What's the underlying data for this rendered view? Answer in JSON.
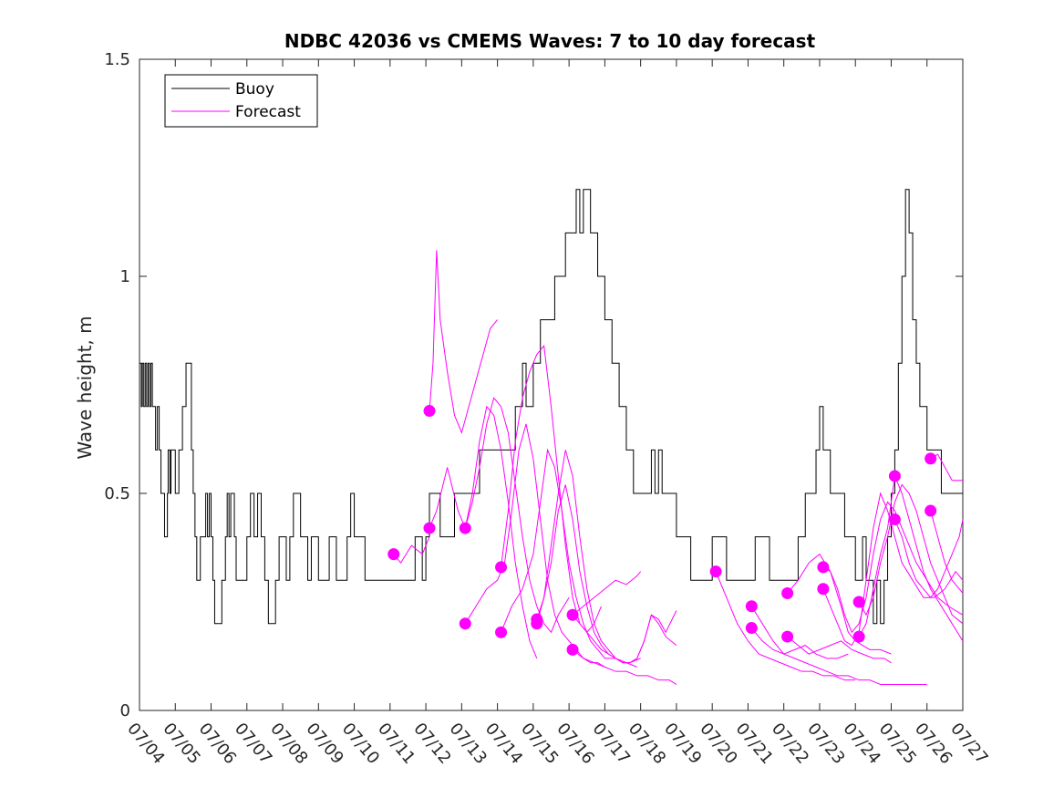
{
  "chart_data": {
    "type": "line",
    "title": "NDBC 42036 vs CMEMS Waves: 7 to 10 day forecast",
    "xlabel": "",
    "ylabel": "Wave height, m",
    "ylim": [
      0,
      1.5
    ],
    "yticks": [
      0,
      0.5,
      1,
      1.5
    ],
    "ytick_labels": [
      "0",
      "0.5",
      "1",
      "1.5"
    ],
    "xlim_days": [
      0,
      23
    ],
    "xtick_labels": [
      "07/04",
      "07/05",
      "07/06",
      "07/07",
      "07/08",
      "07/09",
      "07/10",
      "07/11",
      "07/12",
      "07/13",
      "07/14",
      "07/15",
      "07/16",
      "07/17",
      "07/18",
      "07/19",
      "07/20",
      "07/21",
      "07/22",
      "07/23",
      "07/24",
      "07/25",
      "07/26",
      "07/27"
    ],
    "legend": {
      "placement": "top-left",
      "entries": [
        "Buoy",
        "Forecast"
      ]
    },
    "colors": {
      "buoy": "#000000",
      "forecast": "#ff00ff"
    },
    "grid": false,
    "buoy": {
      "name": "Buoy",
      "x": [
        0,
        0.05,
        0.08,
        0.12,
        0.16,
        0.2,
        0.24,
        0.28,
        0.32,
        0.36,
        0.4,
        0.45,
        0.5,
        0.55,
        0.6,
        0.7,
        0.78,
        0.8,
        0.85,
        0.88,
        0.92,
        1.0,
        1.1,
        1.2,
        1.3,
        1.4,
        1.45,
        1.5,
        1.55,
        1.6,
        1.65,
        1.7,
        1.75,
        1.8,
        1.85,
        1.9,
        1.95,
        2.0,
        2.05,
        2.1,
        2.2,
        2.3,
        2.4,
        2.45,
        2.5,
        2.55,
        2.6,
        2.65,
        2.7,
        2.8,
        2.9,
        3.0,
        3.1,
        3.2,
        3.3,
        3.4,
        3.5,
        3.6,
        3.7,
        3.8,
        3.9,
        4.0,
        4.05,
        4.1,
        4.15,
        4.2,
        4.3,
        4.5,
        4.7,
        4.8,
        4.9,
        5.0,
        5.1,
        5.2,
        5.3,
        5.5,
        5.7,
        5.8,
        5.9,
        6.0,
        6.3,
        6.5,
        6.8,
        7.0,
        7.1,
        7.3,
        7.5,
        7.6,
        7.7,
        7.8,
        7.9,
        8.0,
        8.1,
        8.2,
        8.4,
        8.6,
        8.8,
        9.0,
        9.5,
        10.0,
        10.5,
        10.7,
        10.8,
        11.0,
        11.2,
        11.4,
        11.6,
        11.8,
        11.9,
        12.0,
        12.1,
        12.2,
        12.3,
        12.4,
        12.5,
        12.6,
        12.8,
        13.0,
        13.2,
        13.4,
        13.6,
        13.8,
        14.0,
        14.1,
        14.2,
        14.3,
        14.4,
        14.5,
        14.6,
        14.7,
        14.8,
        14.9,
        15.0,
        15.2,
        15.4,
        15.6,
        15.8,
        16.0,
        16.2,
        16.4,
        16.6,
        16.8,
        17.0,
        17.2,
        17.4,
        17.6,
        17.8,
        18.0,
        18.2,
        18.4,
        18.6,
        18.7,
        18.8,
        18.9,
        19.0,
        19.1,
        19.2,
        19.3,
        19.4,
        19.5,
        19.6,
        19.7,
        19.8,
        19.9,
        20.0,
        20.1,
        20.2,
        20.3,
        20.4,
        20.5,
        20.6,
        20.7,
        20.8,
        20.9,
        21.0,
        21.1,
        21.2,
        21.3,
        21.4,
        21.5,
        21.6,
        21.7,
        21.8,
        21.9,
        22.0,
        22.2,
        22.4,
        22.6,
        22.8,
        23.0
      ],
      "y": [
        0.8,
        0.7,
        0.8,
        0.7,
        0.8,
        0.7,
        0.8,
        0.7,
        0.8,
        0.7,
        0.7,
        0.6,
        0.7,
        0.6,
        0.5,
        0.4,
        0.5,
        0.6,
        0.5,
        0.6,
        0.6,
        0.5,
        0.6,
        0.7,
        0.8,
        0.8,
        0.6,
        0.5,
        0.4,
        0.3,
        0.3,
        0.4,
        0.4,
        0.4,
        0.5,
        0.4,
        0.5,
        0.4,
        0.3,
        0.2,
        0.2,
        0.3,
        0.4,
        0.5,
        0.4,
        0.5,
        0.5,
        0.4,
        0.3,
        0.3,
        0.3,
        0.4,
        0.5,
        0.4,
        0.5,
        0.4,
        0.3,
        0.2,
        0.2,
        0.3,
        0.4,
        0.4,
        0.4,
        0.3,
        0.3,
        0.4,
        0.5,
        0.4,
        0.3,
        0.4,
        0.4,
        0.3,
        0.3,
        0.3,
        0.4,
        0.3,
        0.3,
        0.4,
        0.5,
        0.4,
        0.3,
        0.3,
        0.3,
        0.3,
        0.3,
        0.3,
        0.3,
        0.3,
        0.4,
        0.4,
        0.3,
        0.4,
        0.5,
        0.5,
        0.4,
        0.4,
        0.5,
        0.5,
        0.6,
        0.6,
        0.7,
        0.8,
        0.7,
        0.8,
        0.9,
        0.9,
        1.0,
        1.0,
        1.1,
        1.1,
        1.1,
        1.2,
        1.1,
        1.2,
        1.2,
        1.1,
        1.0,
        0.9,
        0.8,
        0.7,
        0.6,
        0.5,
        0.5,
        0.5,
        0.5,
        0.6,
        0.5,
        0.6,
        0.5,
        0.5,
        0.5,
        0.5,
        0.4,
        0.4,
        0.3,
        0.3,
        0.3,
        0.4,
        0.4,
        0.3,
        0.3,
        0.3,
        0.3,
        0.4,
        0.4,
        0.3,
        0.3,
        0.3,
        0.3,
        0.4,
        0.5,
        0.5,
        0.5,
        0.6,
        0.7,
        0.6,
        0.6,
        0.5,
        0.5,
        0.5,
        0.5,
        0.4,
        0.4,
        0.4,
        0.3,
        0.3,
        0.4,
        0.3,
        0.3,
        0.2,
        0.3,
        0.2,
        0.3,
        0.4,
        0.5,
        0.6,
        0.8,
        1.0,
        1.2,
        1.1,
        0.9,
        0.8,
        0.7,
        0.7,
        0.6,
        0.6,
        0.5,
        0.5,
        0.5,
        0.5
      ],
      "note_steps": "step-like observations"
    },
    "forecast_series": [
      {
        "x": [
          7.1,
          7.3,
          7.6,
          7.9,
          8.1
        ],
        "y": [
          0.36,
          0.34,
          0.38,
          0.36,
          0.4
        ]
      },
      {
        "x": [
          8.1,
          8.2,
          8.3,
          8.4,
          8.6,
          8.8,
          9.0,
          9.2,
          9.4,
          9.6,
          9.8,
          10.0
        ],
        "y": [
          0.69,
          0.8,
          1.06,
          0.9,
          0.78,
          0.68,
          0.64,
          0.7,
          0.76,
          0.82,
          0.88,
          0.9
        ]
      },
      {
        "x": [
          8.1,
          8.3,
          8.6,
          8.9,
          9.1,
          9.3,
          9.5,
          9.7,
          9.9,
          10.1,
          10.3,
          10.5,
          10.7,
          10.9,
          11.1
        ],
        "y": [
          0.42,
          0.46,
          0.56,
          0.46,
          0.42,
          0.5,
          0.62,
          0.7,
          0.68,
          0.6,
          0.48,
          0.34,
          0.24,
          0.16,
          0.12
        ]
      },
      {
        "x": [
          9.1,
          9.3,
          9.5,
          9.7,
          9.9,
          10.1,
          10.3,
          10.5,
          10.7,
          10.9,
          11.1,
          11.3,
          11.5,
          11.7,
          12.0
        ],
        "y": [
          0.42,
          0.48,
          0.56,
          0.66,
          0.72,
          0.7,
          0.64,
          0.52,
          0.4,
          0.3,
          0.24,
          0.2,
          0.18,
          0.22,
          0.26
        ]
      },
      {
        "x": [
          9.1,
          9.4,
          9.7,
          10.0,
          10.2,
          10.4,
          10.6,
          10.8,
          11.0,
          11.2,
          11.4,
          11.6,
          11.8,
          12.0,
          12.2,
          12.4,
          12.6,
          12.8,
          13.0
        ],
        "y": [
          0.2,
          0.24,
          0.28,
          0.3,
          0.34,
          0.46,
          0.6,
          0.66,
          0.58,
          0.44,
          0.3,
          0.22,
          0.18,
          0.16,
          0.14,
          0.12,
          0.11,
          0.11,
          0.1
        ]
      },
      {
        "x": [
          10.1,
          10.3,
          10.5,
          10.7,
          10.9,
          11.1,
          11.3,
          11.5,
          11.7,
          11.9,
          12.1,
          12.3,
          12.5,
          12.7,
          12.9
        ],
        "y": [
          0.33,
          0.46,
          0.62,
          0.72,
          0.78,
          0.82,
          0.84,
          0.7,
          0.54,
          0.38,
          0.26,
          0.2,
          0.18,
          0.2,
          0.24
        ]
      },
      {
        "x": [
          10.1,
          10.4,
          10.7,
          11.0,
          11.2,
          11.4,
          11.6,
          11.8,
          12.0,
          12.2,
          12.4,
          12.6,
          12.8,
          13.0,
          13.3,
          13.6,
          13.9
        ],
        "y": [
          0.18,
          0.24,
          0.28,
          0.36,
          0.48,
          0.6,
          0.56,
          0.46,
          0.34,
          0.26,
          0.2,
          0.16,
          0.14,
          0.12,
          0.12,
          0.11,
          0.1
        ]
      },
      {
        "x": [
          11.1,
          11.3,
          11.5,
          11.7,
          11.9,
          12.1,
          12.3,
          12.5,
          12.7,
          12.9,
          13.1,
          13.3,
          13.5,
          13.7,
          14.0
        ],
        "y": [
          0.21,
          0.26,
          0.38,
          0.5,
          0.6,
          0.54,
          0.4,
          0.28,
          0.2,
          0.16,
          0.14,
          0.12,
          0.11,
          0.11,
          0.12
        ]
      },
      {
        "x": [
          11.1,
          11.3,
          11.5,
          11.7,
          11.9,
          12.1,
          12.3,
          12.5,
          12.7,
          12.9,
          13.1,
          13.3,
          13.5,
          13.7,
          13.9,
          14.1,
          14.3,
          14.5,
          14.7,
          15.0
        ],
        "y": [
          0.2,
          0.26,
          0.34,
          0.46,
          0.52,
          0.44,
          0.32,
          0.24,
          0.18,
          0.15,
          0.13,
          0.12,
          0.11,
          0.11,
          0.12,
          0.16,
          0.22,
          0.2,
          0.17,
          0.15
        ]
      },
      {
        "x": [
          12.1,
          12.3,
          12.5,
          12.7,
          12.9,
          13.1,
          13.3,
          13.5,
          13.7,
          13.9,
          14.1,
          14.3,
          14.5,
          14.7,
          15.0
        ],
        "y": [
          0.22,
          0.2,
          0.18,
          0.16,
          0.14,
          0.13,
          0.12,
          0.11,
          0.11,
          0.12,
          0.16,
          0.22,
          0.21,
          0.18,
          0.23
        ]
      },
      {
        "x": [
          12.1,
          12.4,
          12.7,
          13.0,
          13.3,
          13.6,
          13.9,
          14.2,
          14.5,
          14.8,
          15.0
        ],
        "y": [
          0.14,
          0.12,
          0.11,
          0.1,
          0.09,
          0.09,
          0.08,
          0.08,
          0.07,
          0.07,
          0.06
        ]
      },
      {
        "x": [
          12.1,
          12.4,
          12.7,
          13.0,
          13.3,
          13.6,
          13.9,
          14.0
        ],
        "y": [
          0.22,
          0.24,
          0.26,
          0.28,
          0.3,
          0.29,
          0.31,
          0.32
        ]
      },
      {
        "x": [
          16.1,
          16.4,
          16.7,
          17.0,
          17.3,
          17.6,
          17.9,
          18.2,
          18.5,
          18.8,
          19.1,
          19.4,
          19.7,
          20.0
        ],
        "y": [
          0.32,
          0.26,
          0.2,
          0.16,
          0.13,
          0.12,
          0.11,
          0.1,
          0.09,
          0.09,
          0.08,
          0.08,
          0.07,
          0.07
        ]
      },
      {
        "x": [
          17.1,
          17.4,
          17.7,
          18.0,
          18.3,
          18.6,
          18.9,
          19.2,
          19.5,
          19.8,
          20.1,
          20.4,
          20.7,
          21.0,
          21.3,
          21.6,
          22.0
        ],
        "y": [
          0.24,
          0.2,
          0.16,
          0.13,
          0.12,
          0.11,
          0.1,
          0.09,
          0.08,
          0.08,
          0.07,
          0.07,
          0.06,
          0.06,
          0.06,
          0.06,
          0.06
        ]
      },
      {
        "x": [
          17.1,
          17.4,
          17.7,
          18.0,
          18.3,
          18.6,
          18.9,
          19.2,
          19.5,
          19.8
        ],
        "y": [
          0.19,
          0.16,
          0.14,
          0.13,
          0.14,
          0.15,
          0.13,
          0.12,
          0.12,
          0.13
        ]
      },
      {
        "x": [
          18.1,
          18.4,
          18.7,
          19.0,
          19.3,
          19.6,
          19.8,
          20.0,
          20.2,
          20.4,
          20.7,
          21.0
        ],
        "y": [
          0.27,
          0.3,
          0.34,
          0.36,
          0.32,
          0.24,
          0.18,
          0.16,
          0.15,
          0.14,
          0.14,
          0.13
        ]
      },
      {
        "x": [
          18.1,
          18.4,
          18.7,
          19.0,
          19.3,
          19.6,
          19.9,
          20.2,
          20.5,
          20.8,
          21.0
        ],
        "y": [
          0.17,
          0.15,
          0.13,
          0.14,
          0.15,
          0.16,
          0.14,
          0.13,
          0.12,
          0.12,
          0.11
        ]
      },
      {
        "x": [
          19.1,
          19.3,
          19.5,
          19.7,
          19.9,
          20.1,
          20.3,
          20.5,
          20.7,
          20.9,
          21.1,
          21.4,
          21.7,
          22.0,
          22.3,
          22.6,
          23.0
        ],
        "y": [
          0.33,
          0.32,
          0.28,
          0.22,
          0.18,
          0.2,
          0.26,
          0.36,
          0.44,
          0.48,
          0.46,
          0.4,
          0.34,
          0.3,
          0.26,
          0.24,
          0.22
        ]
      },
      {
        "x": [
          19.1,
          19.3,
          19.5,
          19.7,
          19.9,
          20.1,
          20.3,
          20.5,
          20.7,
          20.9,
          21.1,
          21.3,
          21.6,
          21.9,
          22.2,
          22.5,
          22.8,
          23.0
        ],
        "y": [
          0.28,
          0.24,
          0.2,
          0.16,
          0.15,
          0.18,
          0.3,
          0.42,
          0.5,
          0.46,
          0.4,
          0.34,
          0.3,
          0.26,
          0.26,
          0.28,
          0.32,
          0.3
        ]
      },
      {
        "x": [
          20.1,
          20.3,
          20.5,
          20.7,
          20.9,
          21.1,
          21.3,
          21.5,
          21.7,
          21.9,
          22.1,
          22.3,
          22.5,
          22.7,
          23.0
        ],
        "y": [
          0.25,
          0.22,
          0.26,
          0.34,
          0.4,
          0.48,
          0.52,
          0.5,
          0.46,
          0.4,
          0.34,
          0.3,
          0.26,
          0.22,
          0.2
        ]
      },
      {
        "x": [
          20.1,
          20.3,
          20.5,
          20.7,
          20.9,
          21.1,
          21.3,
          21.5,
          21.7,
          21.9,
          22.1,
          22.4,
          22.7,
          23.0
        ],
        "y": [
          0.17,
          0.2,
          0.28,
          0.36,
          0.42,
          0.54,
          0.5,
          0.44,
          0.38,
          0.32,
          0.28,
          0.24,
          0.2,
          0.16
        ]
      },
      {
        "x": [
          21.1,
          21.3,
          21.5,
          21.7,
          21.9,
          22.1,
          22.3,
          22.5,
          22.7,
          22.9,
          23.0
        ],
        "y": [
          0.44,
          0.4,
          0.34,
          0.3,
          0.28,
          0.26,
          0.28,
          0.32,
          0.36,
          0.4,
          0.44
        ]
      },
      {
        "x": [
          22.1,
          22.3,
          22.5,
          22.7,
          23.0
        ],
        "y": [
          0.58,
          0.59,
          0.56,
          0.53,
          0.53
        ]
      },
      {
        "x": [
          22.1,
          22.3,
          22.5,
          22.7,
          22.9,
          23.0
        ],
        "y": [
          0.46,
          0.4,
          0.34,
          0.3,
          0.28,
          0.27
        ]
      }
    ],
    "forecast_markers": [
      {
        "x": 7.1,
        "y": 0.36
      },
      {
        "x": 8.1,
        "y": 0.69
      },
      {
        "x": 8.1,
        "y": 0.42
      },
      {
        "x": 9.1,
        "y": 0.42
      },
      {
        "x": 9.1,
        "y": 0.2
      },
      {
        "x": 10.1,
        "y": 0.33
      },
      {
        "x": 10.1,
        "y": 0.18
      },
      {
        "x": 11.1,
        "y": 0.21
      },
      {
        "x": 11.1,
        "y": 0.2
      },
      {
        "x": 12.1,
        "y": 0.22
      },
      {
        "x": 12.1,
        "y": 0.14
      },
      {
        "x": 16.1,
        "y": 0.32
      },
      {
        "x": 17.1,
        "y": 0.24
      },
      {
        "x": 17.1,
        "y": 0.19
      },
      {
        "x": 18.1,
        "y": 0.27
      },
      {
        "x": 18.1,
        "y": 0.17
      },
      {
        "x": 19.1,
        "y": 0.33
      },
      {
        "x": 19.1,
        "y": 0.28
      },
      {
        "x": 20.1,
        "y": 0.25
      },
      {
        "x": 20.1,
        "y": 0.17
      },
      {
        "x": 21.1,
        "y": 0.54
      },
      {
        "x": 21.1,
        "y": 0.44
      },
      {
        "x": 22.1,
        "y": 0.58
      },
      {
        "x": 22.1,
        "y": 0.46
      }
    ]
  }
}
